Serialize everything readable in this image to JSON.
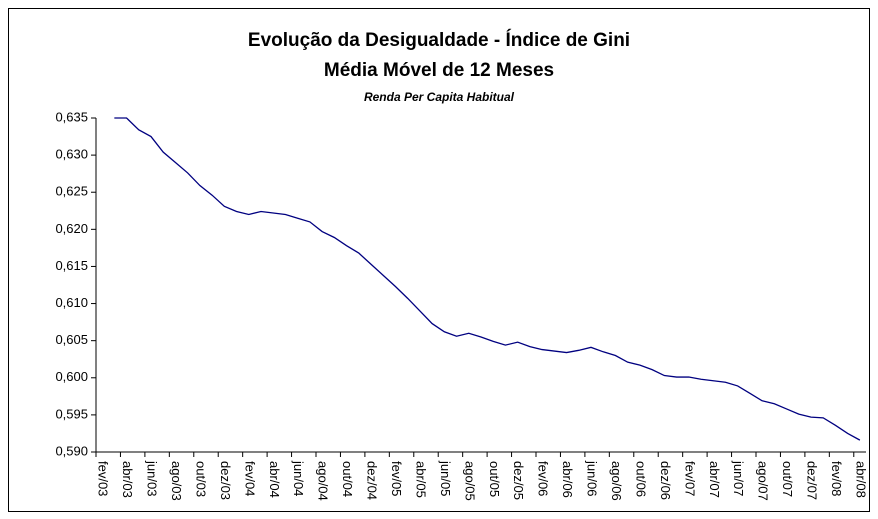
{
  "chart_data": {
    "type": "line",
    "title": "Evolução da Desigualdade - Índice de Gini",
    "subtitle": "Média Móvel de 12 Meses",
    "note": "Renda Per Capita Habitual",
    "categories": [
      "fev/03",
      null,
      "abr/03",
      null,
      "jun/03",
      null,
      "ago/03",
      null,
      "out/03",
      null,
      "dez/03",
      null,
      "fev/04",
      null,
      "abr/04",
      null,
      "jun/04",
      null,
      "ago/04",
      null,
      "out/04",
      null,
      "dez/04",
      null,
      "fev/05",
      null,
      "abr/05",
      null,
      "jun/05",
      null,
      "ago/05",
      null,
      "out/05",
      null,
      "dez/05",
      null,
      "fev/06",
      null,
      "abr/06",
      null,
      "jun/06",
      null,
      "ago/06",
      null,
      "out/06",
      null,
      "dez/06",
      null,
      "fev/07",
      null,
      "abr/07",
      null,
      "jun/07",
      null,
      "ago/07",
      null,
      "out/07",
      null,
      "dez/07",
      null,
      "fev/08",
      null,
      "abr/08"
    ],
    "values": [
      null,
      0.635,
      0.635,
      0.6334,
      0.6325,
      0.6304,
      0.629,
      0.6276,
      0.6259,
      0.6246,
      0.6231,
      0.6224,
      0.622,
      0.6224,
      0.6222,
      0.622,
      0.6215,
      0.621,
      0.6197,
      0.6189,
      0.6178,
      0.6168,
      0.6153,
      0.6138,
      0.6123,
      0.6107,
      0.609,
      0.6073,
      0.6062,
      0.6056,
      0.606,
      0.6055,
      0.6049,
      0.6044,
      0.6048,
      0.6042,
      0.6038,
      0.6036,
      0.6034,
      0.6037,
      0.6041,
      0.6035,
      0.603,
      0.6021,
      0.6017,
      0.6011,
      0.6003,
      0.6001,
      0.6001,
      0.5998,
      0.5996,
      0.5994,
      0.5989,
      0.5979,
      0.5969,
      0.5965,
      0.5958,
      0.5951,
      0.5947,
      0.5946,
      0.5936,
      0.5925,
      0.5916
    ],
    "color": "#000080",
    "ylim": [
      0.59,
      0.635
    ],
    "yticks": [
      {
        "value": 0.59,
        "label": "0,590"
      },
      {
        "value": 0.595,
        "label": "0,595"
      },
      {
        "value": 0.6,
        "label": "0,600"
      },
      {
        "value": 0.605,
        "label": "0,605"
      },
      {
        "value": 0.61,
        "label": "0,610"
      },
      {
        "value": 0.615,
        "label": "0,615"
      },
      {
        "value": 0.62,
        "label": "0,620"
      },
      {
        "value": 0.625,
        "label": "0,625"
      },
      {
        "value": 0.63,
        "label": "0,630"
      },
      {
        "value": 0.635,
        "label": "0,635"
      }
    ],
    "grid": false
  }
}
